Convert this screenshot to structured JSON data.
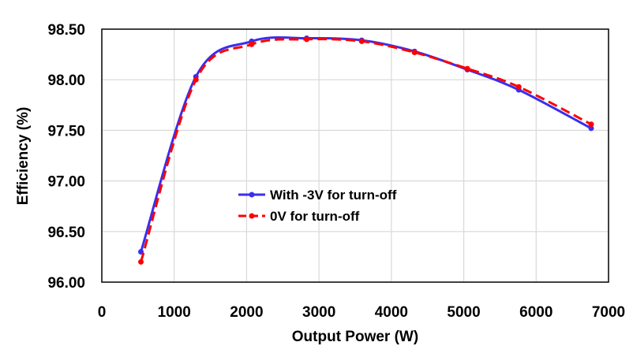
{
  "chart_data": {
    "type": "line",
    "title": "",
    "xlabel": "Output Power (W)",
    "ylabel": "Efficiency (%)",
    "xlim": [
      0,
      7000
    ],
    "ylim": [
      96.0,
      98.5
    ],
    "x_ticks": [
      "0",
      "1000",
      "2000",
      "3000",
      "4000",
      "5000",
      "6000",
      "7000"
    ],
    "y_ticks": [
      "96.00",
      "96.50",
      "97.00",
      "97.50",
      "98.00",
      "98.50"
    ],
    "grid": true,
    "legend_position": "center-left",
    "series": [
      {
        "name": "With -3V for turn-off",
        "color": "#3a2ef0",
        "style": "solid",
        "x": [
          540,
          1300,
          2070,
          2830,
          3590,
          4320,
          5050,
          5760,
          6760
        ],
        "y": [
          96.3,
          98.03,
          98.38,
          98.41,
          98.39,
          98.28,
          98.1,
          97.9,
          97.52
        ]
      },
      {
        "name": "0V for turn-off",
        "color": "#ff0000",
        "style": "dashed",
        "x": [
          540,
          1300,
          2070,
          2830,
          3590,
          4320,
          5050,
          5760,
          6760
        ],
        "y": [
          96.2,
          98.0,
          98.35,
          98.4,
          98.38,
          98.27,
          98.11,
          97.93,
          97.56
        ]
      }
    ]
  }
}
